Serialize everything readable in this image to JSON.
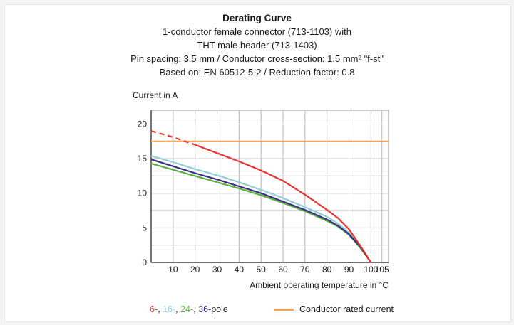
{
  "chart_data": {
    "type": "line",
    "title": "Derating Curve",
    "subtitle_lines": [
      "1-conductor female connector (713-1103) with",
      "THT male header (713-1403)",
      "Pin spacing: 3.5 mm / Conductor cross-section: 1.5 mm",
      "Based on: EN 60512-5-2 / Reduction factor: 0.8"
    ],
    "subtitle_sup": "2",
    "subtitle_suffix": " \"f-st\"",
    "ylabel": "Current in A",
    "xlabel": "Ambient operating temperature in °C",
    "xlim": [
      0,
      108
    ],
    "ylim": [
      0,
      22
    ],
    "xticks": [
      10,
      20,
      30,
      40,
      50,
      60,
      70,
      80,
      90,
      100,
      105
    ],
    "yticks": [
      0,
      5,
      10,
      15,
      20
    ],
    "grid": true,
    "series": [
      {
        "name": "6-",
        "color": "#e8352c",
        "dashed_until_x": 20,
        "x": [
          0,
          10,
          20,
          30,
          40,
          50,
          60,
          70,
          80,
          85,
          90,
          95,
          100
        ],
        "y": [
          19.0,
          18.1,
          17.0,
          15.8,
          14.6,
          13.3,
          11.8,
          9.8,
          7.6,
          6.4,
          4.8,
          2.5,
          0
        ]
      },
      {
        "name": "16-",
        "color": "#8fcfd6",
        "x": [
          0,
          10,
          20,
          30,
          40,
          50,
          60,
          70,
          80,
          85,
          90,
          95,
          100
        ],
        "y": [
          15.4,
          14.5,
          13.5,
          12.6,
          11.6,
          10.5,
          9.3,
          8.0,
          6.6,
          5.6,
          4.3,
          2.4,
          0
        ]
      },
      {
        "name": "24-",
        "color": "#5ab03d",
        "x": [
          0,
          10,
          20,
          30,
          40,
          50,
          60,
          70,
          80,
          85,
          90,
          95,
          100
        ],
        "y": [
          14.3,
          13.4,
          12.5,
          11.6,
          10.7,
          9.7,
          8.6,
          7.4,
          6.0,
          5.2,
          4.0,
          2.2,
          0
        ]
      },
      {
        "name": "36-",
        "color": "#3b2f86",
        "x": [
          0,
          10,
          20,
          30,
          40,
          50,
          60,
          70,
          80,
          85,
          90,
          95,
          100
        ],
        "y": [
          14.9,
          13.9,
          12.9,
          12.0,
          11.0,
          10.0,
          8.8,
          7.6,
          6.2,
          5.3,
          4.1,
          2.3,
          0
        ]
      },
      {
        "name": "Conductor rated current",
        "color": "#f5a55a",
        "x": [
          0,
          108
        ],
        "y": [
          17.5,
          17.5
        ]
      }
    ]
  },
  "legend": {
    "poles": [
      {
        "text": "6-",
        "color": "#e8352c"
      },
      {
        "text": ", ",
        "color": "#1a1a1a"
      },
      {
        "text": "16-",
        "color": "#8fcfd6"
      },
      {
        "text": ", ",
        "color": "#1a1a1a"
      },
      {
        "text": "24-",
        "color": "#5ab03d"
      },
      {
        "text": ", ",
        "color": "#1a1a1a"
      },
      {
        "text": "36-",
        "color": "#3b2f86"
      },
      {
        "text": "pole",
        "color": "#1a1a1a"
      }
    ],
    "rated_label": "Conductor rated current",
    "rated_color": "#f5a55a"
  }
}
